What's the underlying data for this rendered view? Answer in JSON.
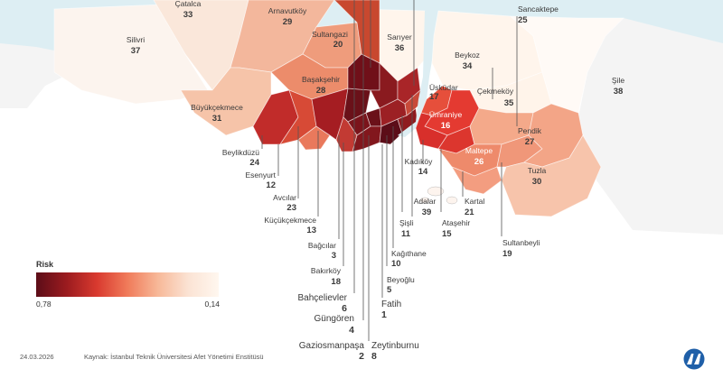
{
  "legend": {
    "title": "Risk",
    "high_value": "0,78",
    "low_value": "0,14"
  },
  "footer": {
    "date": "24.03.2026",
    "source": "Kaynak: İstanbul Teknik Üniversitesi Afet Yönetimi Enstitüsü"
  },
  "colors": {
    "sea": "#ddeef3",
    "outside": "#f4f4f4",
    "risk_high": "#5c0d18",
    "risk_mid": "#d93a2f",
    "risk_low": "#fff7ef"
  },
  "logo": "aa-news-agency-logo",
  "districts": [
    {
      "name": "Çatalca",
      "rank": "33"
    },
    {
      "name": "Arnavutköy",
      "rank": "29"
    },
    {
      "name": "Sancaktepe",
      "rank": "25"
    },
    {
      "name": "Silivri",
      "rank": "37"
    },
    {
      "name": "Sultangazi",
      "rank": "20"
    },
    {
      "name": "Sarıyer",
      "rank": "36"
    },
    {
      "name": "Beykoz",
      "rank": "34"
    },
    {
      "name": "Şile",
      "rank": "38"
    },
    {
      "name": "Başakşehir",
      "rank": "28"
    },
    {
      "name": "Üsküdar",
      "rank": "17"
    },
    {
      "name": "Çekmeköy",
      "rank": "35"
    },
    {
      "name": "Büyükçekmece",
      "rank": "31"
    },
    {
      "name": "Ümraniye",
      "rank": "16"
    },
    {
      "name": "Pendik",
      "rank": "27"
    },
    {
      "name": "Beylikdüzü",
      "rank": "24"
    },
    {
      "name": "Kadıköy",
      "rank": "14"
    },
    {
      "name": "Maltepe",
      "rank": "26"
    },
    {
      "name": "Esenyurt",
      "rank": "12"
    },
    {
      "name": "Tuzla",
      "rank": "30"
    },
    {
      "name": "Avcılar",
      "rank": "23"
    },
    {
      "name": "Adalar",
      "rank": "39"
    },
    {
      "name": "Kartal",
      "rank": "21"
    },
    {
      "name": "Küçükçekmece",
      "rank": "13"
    },
    {
      "name": "Şişli",
      "rank": "11"
    },
    {
      "name": "Ataşehir",
      "rank": "15"
    },
    {
      "name": "Sultanbeyli",
      "rank": "19"
    },
    {
      "name": "Bağcılar",
      "rank": "3"
    },
    {
      "name": "Kağıthane",
      "rank": "10"
    },
    {
      "name": "Bakırköy",
      "rank": "18"
    },
    {
      "name": "Beyoğlu",
      "rank": "5"
    },
    {
      "name": "Bahçelievler",
      "rank": "6"
    },
    {
      "name": "Fatih",
      "rank": "1"
    },
    {
      "name": "Güngören",
      "rank": "4"
    },
    {
      "name": "Gaziosmanpaşa",
      "rank": "2"
    },
    {
      "name": "Zeytinburnu",
      "rank": "8"
    }
  ]
}
